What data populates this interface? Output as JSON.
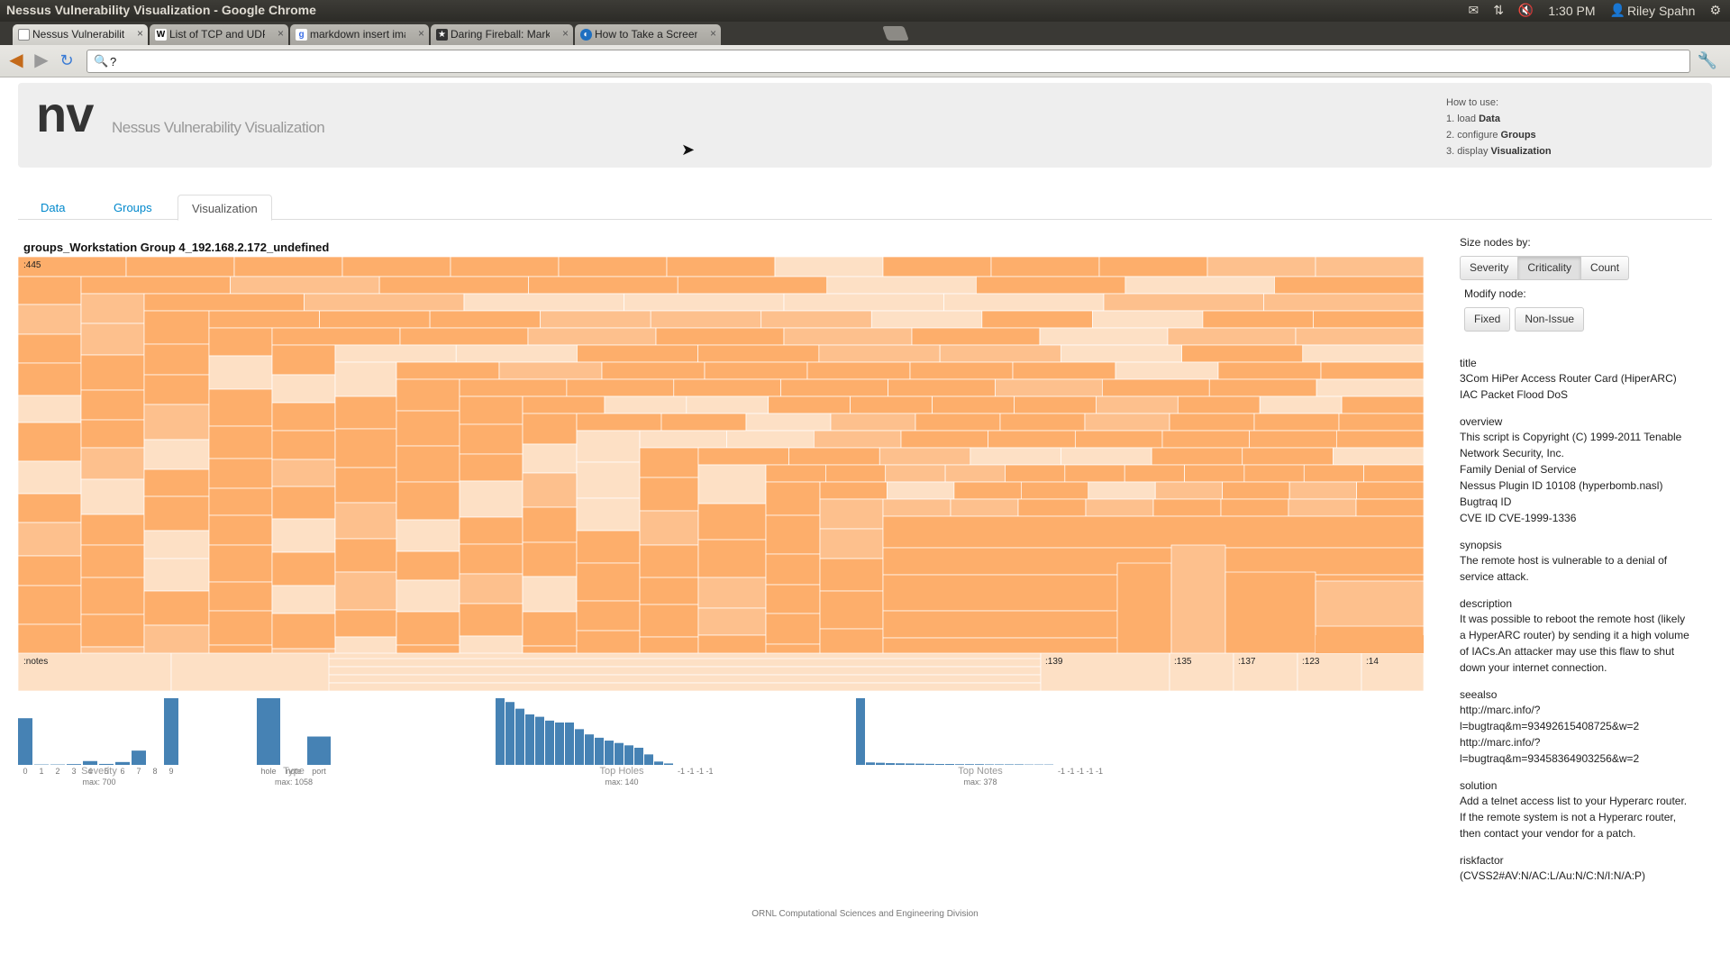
{
  "os_bar": {
    "window_title": "Nessus Vulnerability Visualization - Google Chrome",
    "clock": "1:30 PM",
    "user": "Riley Spahn"
  },
  "browser": {
    "tabs": [
      {
        "label": "Nessus Vulnerability Visua",
        "favicon": "page-icon",
        "active": true
      },
      {
        "label": "List of TCP and UDP port n",
        "favicon": "wikipedia-icon",
        "active": false
      },
      {
        "label": "markdown insert image - G",
        "favicon": "google-icon",
        "active": false
      },
      {
        "label": "Daring Fireball: Markdown",
        "favicon": "star-icon",
        "active": false
      },
      {
        "label": "How to Take a Screenshot",
        "favicon": "drupal-icon",
        "active": false
      }
    ],
    "address": "?"
  },
  "header": {
    "logo": "nv",
    "subtitle": "Nessus Vulnerability Visualization",
    "howto_title": "How to use:",
    "howto_steps": [
      {
        "prefix": "1. load ",
        "bold": "Data"
      },
      {
        "prefix": "2. configure ",
        "bold": "Groups"
      },
      {
        "prefix": "3. display ",
        "bold": "Visualization"
      }
    ]
  },
  "page_tabs": [
    "Data",
    "Groups",
    "Visualization"
  ],
  "active_tab": "Visualization",
  "treemap": {
    "title": "groups_Workstation Group 4_192.168.2.172_undefined",
    "top_label": ":445",
    "bottom_labels": [
      ":notes",
      ":139",
      ":135",
      ":137",
      ":123",
      ":14"
    ]
  },
  "charts": [
    {
      "label": "Severity",
      "max": "max: 700",
      "categories": [
        "0",
        "1",
        "2",
        "3",
        "4",
        "5",
        "6",
        "7",
        "8",
        "9"
      ],
      "values": [
        490,
        4,
        4,
        8,
        40,
        10,
        30,
        150,
        0,
        700
      ]
    },
    {
      "label": "Type",
      "max": "max: 1058",
      "categories": [
        "hole",
        "note",
        "port"
      ],
      "values": [
        1058,
        0,
        450
      ]
    },
    {
      "label": "Top Holes",
      "max": "max: 140",
      "categories": [],
      "tick_text": "-1 -1 -1 -1",
      "values": [
        140,
        132,
        118,
        106,
        101,
        93,
        89,
        89,
        75,
        64,
        57,
        51,
        46,
        41,
        36,
        22,
        7,
        3
      ]
    },
    {
      "label": "Top Notes",
      "max": "max: 378",
      "categories": [],
      "tick_text": "-1 -1 -1 -1 -1",
      "values": [
        378,
        14,
        12,
        10,
        9,
        8,
        7,
        6,
        5,
        5,
        4,
        4,
        4,
        3,
        3,
        3,
        3,
        2,
        2,
        2
      ]
    }
  ],
  "panel": {
    "size_label": "Size nodes by:",
    "size_options": [
      "Severity",
      "Criticality",
      "Count"
    ],
    "size_active": "Criticality",
    "modify_label": "Modify node:",
    "modify_options": [
      "Fixed",
      "Non-Issue"
    ],
    "details": [
      {
        "key": "title",
        "value": "3Com HiPer Access Router Card (HiperARC)\nIAC Packet Flood DoS"
      },
      {
        "key": "overview",
        "value": "This script is Copyright (C) 1999-2011 Tenable\nNetwork Security, Inc.\nFamily Denial of Service\nNessus Plugin ID 10108 (hyperbomb.nasl)\nBugtraq ID\nCVE ID CVE-1999-1336"
      },
      {
        "key": "synopsis",
        "value": "The remote host is vulnerable to a denial of\nservice attack."
      },
      {
        "key": "description",
        "value": "It was possible to reboot the remote host (likely\na HyperARC router) by sending it a high volume\nof IACs.An attacker may use this flaw to shut\ndown your internet connection."
      },
      {
        "key": "seealso",
        "value": "http://marc.info/?\nl=bugtraq&m=93492615408725&w=2\nhttp://marc.info/?\nl=bugtraq&m=93458364903256&w=2"
      },
      {
        "key": "solution",
        "value": "Add a telnet access list to your Hyperarc router.\nIf the remote system is not a Hyperarc router,\nthen contact your vendor for a patch."
      },
      {
        "key": "riskfactor",
        "value": "(CVSS2#AV:N/AC:L/Au:N/C:N/I:N/A:P)"
      }
    ]
  },
  "footer": "ORNL Computational Sciences and Engineering Division",
  "colors": {
    "bar": "#4682b4",
    "cell_dark": "#fdae6b",
    "cell_mid": "#fdc08d",
    "cell_light": "#fde0c5",
    "header_bg": "#eeeeee",
    "link": "#0088cc"
  }
}
